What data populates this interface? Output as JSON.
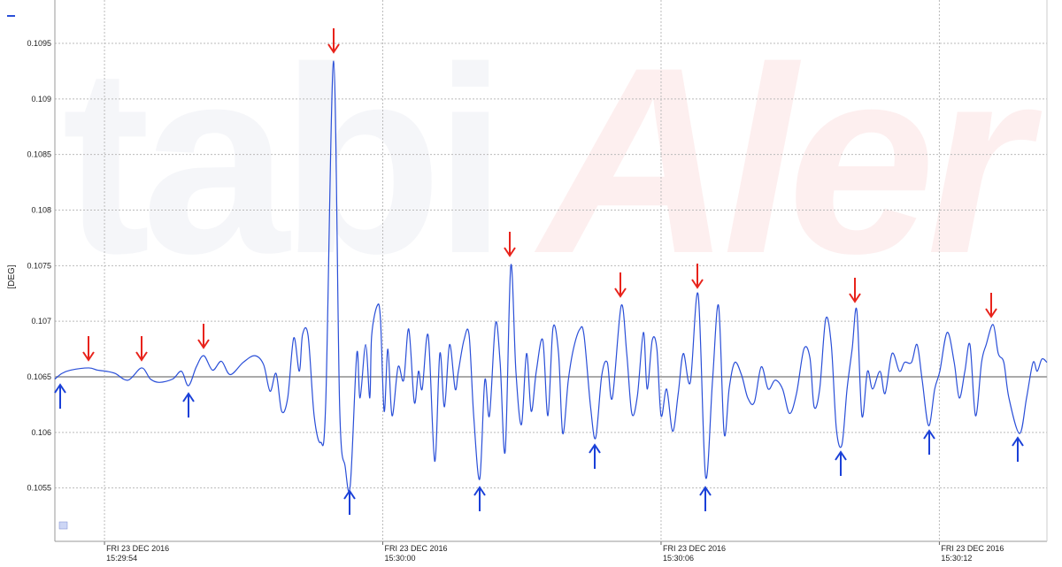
{
  "chart_data": {
    "type": "line",
    "y_label": "[DEG]",
    "watermark": [
      "tabi",
      "Aler"
    ],
    "reference_line": 0.1065,
    "reference_color": "#aaaaaa",
    "xlim": [
      55792.93,
      55814.32
    ],
    "xticks": [
      {
        "value": 55794,
        "label": "15:29:54",
        "date": "FRI 23 DEC 2016"
      },
      {
        "value": 55800,
        "label": "15:30:00",
        "date": "FRI 23 DEC 2016"
      },
      {
        "value": 55806,
        "label": "15:30:06",
        "date": "FRI 23 DEC 2016"
      },
      {
        "value": 55812,
        "label": "15:30:12",
        "date": "FRI 23 DEC 2016"
      }
    ],
    "ylim": [
      0.10502,
      0.10989
    ],
    "yticks": [
      0.1055,
      0.106,
      0.1065,
      0.107,
      0.1075,
      0.108,
      0.1085,
      0.109,
      0.1095
    ],
    "grid": true,
    "x": [
      55792.93,
      55793.08,
      55793.27,
      55793.66,
      55793.85,
      55794.04,
      55794.23,
      55794.51,
      55794.8,
      55794.99,
      55795.18,
      55795.47,
      55795.66,
      55795.81,
      55795.98,
      55796.14,
      55796.33,
      55796.52,
      55796.71,
      55796.99,
      55797.24,
      55797.43,
      55797.57,
      55797.7,
      55797.82,
      55797.95,
      55798.08,
      55798.2,
      55798.27,
      55798.39,
      55798.52,
      55798.66,
      55798.77,
      55798.94,
      55799.07,
      55799.19,
      55799.3,
      55799.44,
      55799.51,
      55799.63,
      55799.72,
      55799.76,
      55799.88,
      55799.95,
      55800.03,
      55800.11,
      55800.2,
      55800.33,
      55800.45,
      55800.56,
      55800.68,
      55800.77,
      55800.85,
      55800.98,
      55801.12,
      55801.23,
      55801.33,
      55801.44,
      55801.56,
      55801.63,
      55801.75,
      55801.86,
      55801.96,
      55802.09,
      55802.2,
      55802.3,
      55802.43,
      55802.53,
      55802.64,
      55802.76,
      55802.87,
      55802.99,
      55803.1,
      55803.2,
      55803.31,
      55803.45,
      55803.56,
      55803.67,
      55803.79,
      55803.88,
      55804.0,
      55804.11,
      55804.25,
      55804.34,
      55804.48,
      55804.59,
      55804.72,
      55804.84,
      55804.95,
      55805.14,
      55805.26,
      55805.37,
      55805.49,
      55805.62,
      55805.7,
      55805.81,
      55805.91,
      55806.0,
      55806.12,
      55806.25,
      55806.37,
      55806.48,
      55806.63,
      55806.8,
      55806.96,
      55807.11,
      55807.24,
      55807.36,
      55807.47,
      55807.59,
      55807.74,
      55807.87,
      55808.01,
      55808.16,
      55808.31,
      55808.46,
      55808.62,
      55808.77,
      55808.92,
      55809.08,
      55809.21,
      55809.3,
      55809.42,
      55809.55,
      55809.67,
      55809.78,
      55809.9,
      55810.01,
      55810.12,
      55810.22,
      55810.33,
      55810.45,
      55810.56,
      55810.72,
      55810.83,
      55810.98,
      55811.14,
      55811.25,
      55811.4,
      55811.52,
      55811.63,
      55811.77,
      55811.9,
      55812.01,
      55812.17,
      55812.32,
      55812.43,
      55812.55,
      55812.66,
      55812.78,
      55812.91,
      55813.01,
      55813.16,
      55813.27,
      55813.39,
      55813.5,
      55813.73,
      55813.88,
      55814.02,
      55814.11,
      55814.21,
      55814.32
    ],
    "series": [
      {
        "color": "#2a4fd8",
        "values": [
          0.10648,
          0.10653,
          0.10656,
          0.10658,
          0.10656,
          0.10655,
          0.10653,
          0.10647,
          0.10658,
          0.10648,
          0.10645,
          0.10648,
          0.10655,
          0.10642,
          0.10659,
          0.10669,
          0.10656,
          0.10664,
          0.10652,
          0.10663,
          0.10669,
          0.10661,
          0.10637,
          0.10653,
          0.10619,
          0.10631,
          0.10685,
          0.10655,
          0.10688,
          0.10687,
          0.10615,
          0.10591,
          0.10627,
          0.10934,
          0.10623,
          0.10569,
          0.10553,
          0.10671,
          0.10631,
          0.10679,
          0.10631,
          0.10687,
          0.10714,
          0.10702,
          0.10619,
          0.10675,
          0.10615,
          0.10659,
          0.10647,
          0.10693,
          0.10627,
          0.10655,
          0.10639,
          0.10687,
          0.10574,
          0.10671,
          0.10623,
          0.10679,
          0.10639,
          0.10655,
          0.10683,
          0.10688,
          0.10615,
          0.10558,
          0.10647,
          0.10615,
          0.10698,
          0.10663,
          0.10583,
          0.1075,
          0.10655,
          0.10607,
          0.10671,
          0.10619,
          0.10655,
          0.10683,
          0.10615,
          0.10694,
          0.10671,
          0.10599,
          0.10647,
          0.10675,
          0.10693,
          0.10687,
          0.10623,
          0.10595,
          0.10651,
          0.10663,
          0.10631,
          0.10714,
          0.10671,
          0.10617,
          0.10633,
          0.1069,
          0.10639,
          0.10683,
          0.10675,
          0.10615,
          0.10639,
          0.10601,
          0.10635,
          0.10671,
          0.10645,
          0.10724,
          0.1056,
          0.10647,
          0.10714,
          0.10599,
          0.1064,
          0.10663,
          0.10651,
          0.10631,
          0.10627,
          0.10659,
          0.10639,
          0.10647,
          0.10639,
          0.10617,
          0.10635,
          0.10675,
          0.10667,
          0.10623,
          0.10639,
          0.10702,
          0.10679,
          0.10603,
          0.10589,
          0.10639,
          0.10675,
          0.1071,
          0.10615,
          0.10655,
          0.10639,
          0.10655,
          0.10635,
          0.10671,
          0.10655,
          0.10663,
          0.10663,
          0.10679,
          0.10647,
          0.10606,
          0.10639,
          0.10655,
          0.1069,
          0.10663,
          0.10631,
          0.10655,
          0.10679,
          0.10615,
          0.10663,
          0.10679,
          0.10697,
          0.10671,
          0.10663,
          0.10631,
          0.10599,
          0.10631,
          0.10663,
          0.10655,
          0.10666,
          0.10663
        ]
      }
    ]
  }
}
